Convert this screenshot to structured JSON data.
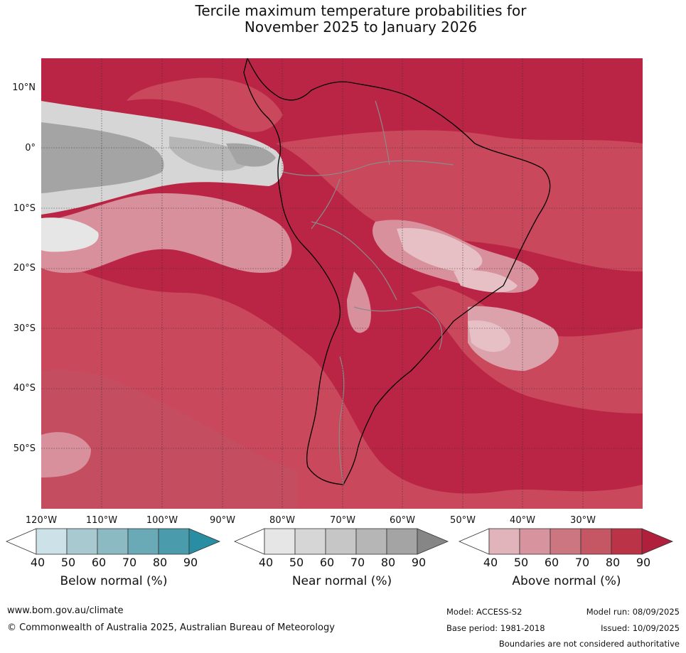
{
  "title": {
    "line1": "Tercile maximum temperature probabilities for",
    "line2": "November 2025 to January 2026"
  },
  "axes": {
    "latitudes": [
      "10°N",
      "0°",
      "10°S",
      "20°S",
      "30°S",
      "40°S",
      "50°S"
    ],
    "longitudes": [
      "120°W",
      "110°W",
      "100°W",
      "90°W",
      "80°W",
      "70°W",
      "60°W",
      "50°W",
      "40°W",
      "30°W"
    ]
  },
  "legend": {
    "below": {
      "title": "Below normal (%)",
      "ticks": [
        "40",
        "50",
        "60",
        "70",
        "80",
        "90"
      ],
      "colors": [
        "#ffffff",
        "#cde2e8",
        "#a9c9d0",
        "#8bbac3",
        "#6aaab7",
        "#4a9cac",
        "#2a8ea3"
      ]
    },
    "near": {
      "title": "Near normal (%)",
      "ticks": [
        "40",
        "50",
        "60",
        "70",
        "80",
        "90"
      ],
      "colors": [
        "#ffffff",
        "#e6e6e6",
        "#d6d6d6",
        "#c6c6c6",
        "#b6b6b6",
        "#a4a4a4",
        "#868686"
      ]
    },
    "above": {
      "title": "Above normal (%)",
      "ticks": [
        "40",
        "50",
        "60",
        "70",
        "80",
        "90"
      ],
      "colors": [
        "#ffffff",
        "#e0b4ba",
        "#d7949e",
        "#cc7682",
        "#c55764",
        "#bb3347",
        "#b01f3c"
      ]
    }
  },
  "footer": {
    "website": "www.bom.gov.au/climate",
    "copyright": "© Commonwealth of Australia 2025, Australian Bureau of Meteorology",
    "model": "Model: ACCESS-S2",
    "base_period": "Base period: 1981-2018",
    "model_run": "Model run: 08/09/2025",
    "issued": "Issued: 10/09/2025",
    "disclaimer": "Boundaries are not considered authoritative"
  }
}
